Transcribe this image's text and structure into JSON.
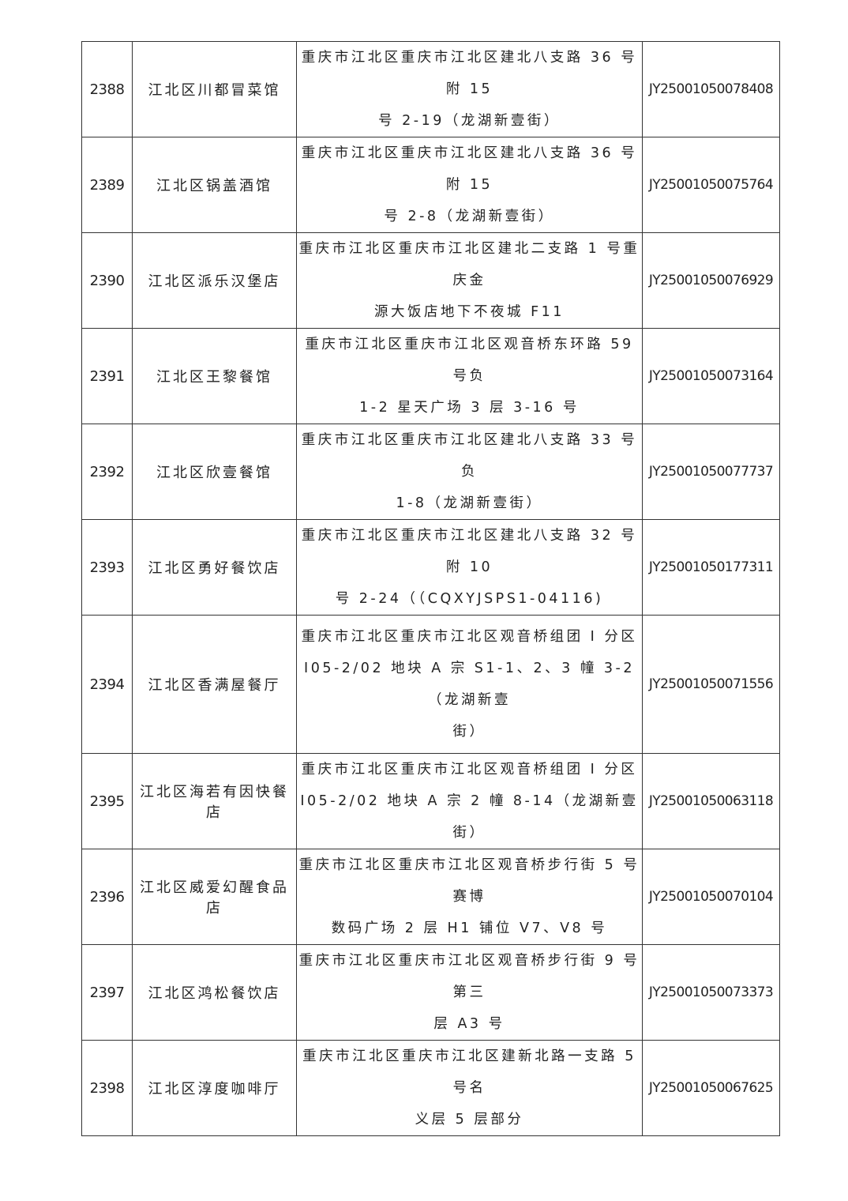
{
  "rows": [
    {
      "no": "2388",
      "name": "江北区川都冒菜馆",
      "address": "重庆市江北区重庆市江北区建北八支路 36 号附 15\n号 2-19（龙湖新壹街）",
      "license": "JY25001050078408"
    },
    {
      "no": "2389",
      "name": "江北区锅盖酒馆",
      "address": "重庆市江北区重庆市江北区建北八支路 36 号附 15\n号 2-8（龙湖新壹街）",
      "license": "JY25001050075764"
    },
    {
      "no": "2390",
      "name": "江北区派乐汉堡店",
      "address": "重庆市江北区重庆市江北区建北二支路 1 号重庆金\n源大饭店地下不夜城 F11",
      "license": "JY25001050076929"
    },
    {
      "no": "2391",
      "name": "江北区王黎餐馆",
      "address": "重庆市江北区重庆市江北区观音桥东环路 59 号负\n1-2 星天广场 3 层 3-16 号",
      "license": "JY25001050073164"
    },
    {
      "no": "2392",
      "name": "江北区欣壹餐馆",
      "address": "重庆市江北区重庆市江北区建北八支路 33 号负\n1-8（龙湖新壹街）",
      "license": "JY25001050077737"
    },
    {
      "no": "2393",
      "name": "江北区勇好餐饮店",
      "address": "重庆市江北区重庆市江北区建北八支路 32 号附 10\n号 2-24（（CQXYJSPS1-04116)",
      "license": "JY25001050177311"
    },
    {
      "no": "2394",
      "name": "江北区香满屋餐厅",
      "address": "重庆市江北区重庆市江北区观音桥组团 I 分区\nI05-2/02 地块 A 宗 S1-1、2、3 幢 3-2（龙湖新壹\n街）",
      "license": "JY25001050071556"
    },
    {
      "no": "2395",
      "name": "江北区海若有因快餐店",
      "address": "重庆市江北区重庆市江北区观音桥组团 I 分区\nI05-2/02 地块 A 宗 2 幢 8-14（龙湖新壹街）",
      "license": "JY25001050063118"
    },
    {
      "no": "2396",
      "name": "江北区威爱幻醒食品店",
      "address": "重庆市江北区重庆市江北区观音桥步行街 5 号赛博\n数码广场 2 层 H1 铺位 V7、V8 号",
      "license": "JY25001050070104"
    },
    {
      "no": "2397",
      "name": "江北区鸿松餐饮店",
      "address": "重庆市江北区重庆市江北区观音桥步行街 9 号第三\n层 A3 号",
      "license": "JY25001050073373"
    },
    {
      "no": "2398",
      "name": "江北区淳度咖啡厅",
      "address": "重庆市江北区重庆市江北区建新北路一支路 5 号名\n义层 5 层部分",
      "license": "JY25001050067625"
    }
  ]
}
